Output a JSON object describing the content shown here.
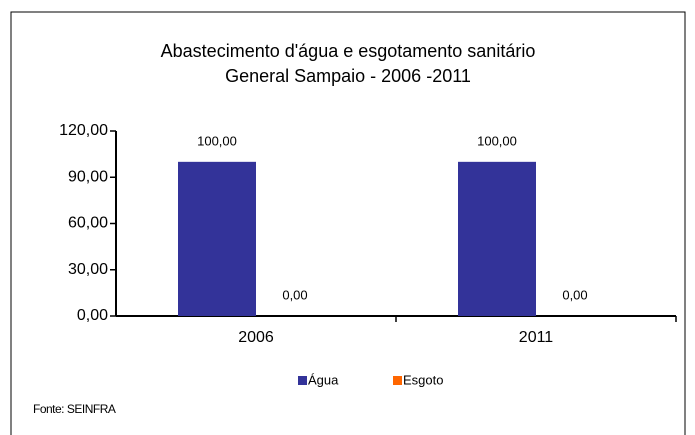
{
  "chart_data": {
    "type": "bar",
    "title": "Abastecimento d'água e esgotamento sanitário",
    "subtitle": "General Sampaio - 2006 -2011",
    "categories": [
      "2006",
      "2011"
    ],
    "series": [
      {
        "name": "Água",
        "color": "#333399",
        "values": [
          100,
          100
        ],
        "value_labels": [
          "100,00",
          "100,00"
        ]
      },
      {
        "name": "Esgoto",
        "color": "#ff6600",
        "values": [
          0,
          0
        ],
        "value_labels": [
          "0,00",
          "0,00"
        ]
      }
    ],
    "ylim": [
      0,
      120
    ],
    "yticks": [
      {
        "value": 0,
        "label": "0,00"
      },
      {
        "value": 30,
        "label": "30,00"
      },
      {
        "value": 60,
        "label": "60,00"
      },
      {
        "value": 90,
        "label": "90,00"
      },
      {
        "value": 120,
        "label": "120,00"
      }
    ],
    "grid": false,
    "legend": "bottom",
    "source": "Fonte: SEINFRA"
  }
}
